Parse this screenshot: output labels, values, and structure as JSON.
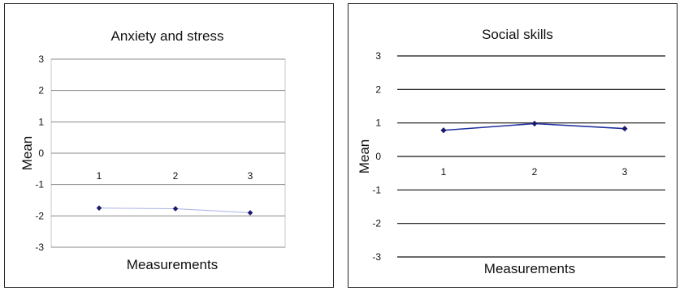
{
  "chart_data": [
    {
      "type": "line",
      "title": "Anxiety and stress",
      "xlabel": "Measurements",
      "ylabel": "Mean",
      "categories": [
        "1",
        "2",
        "3"
      ],
      "series": [
        {
          "values": [
            -1.75,
            -1.77,
            -1.9
          ]
        }
      ],
      "ylim": [
        -3,
        3
      ],
      "yticks": [
        "3",
        "2",
        "1",
        "0",
        "-1",
        "-2",
        "-3"
      ],
      "grid": "y",
      "colors": {
        "line": "#aab0e6",
        "marker": "#1a1a70",
        "grid": "#888888"
      }
    },
    {
      "type": "line",
      "title": "Social skills",
      "xlabel": "Measurements",
      "ylabel": "Mean",
      "categories": [
        "1",
        "2",
        "3"
      ],
      "series": [
        {
          "values": [
            0.78,
            0.98,
            0.83
          ]
        }
      ],
      "ylim": [
        -3,
        3
      ],
      "yticks": [
        "3",
        "2",
        "1",
        "0",
        "-1",
        "-2",
        "-3"
      ],
      "grid": "y",
      "colors": {
        "line": "#1f2f9e",
        "marker": "#1a1a70",
        "grid": "#111111"
      }
    }
  ]
}
